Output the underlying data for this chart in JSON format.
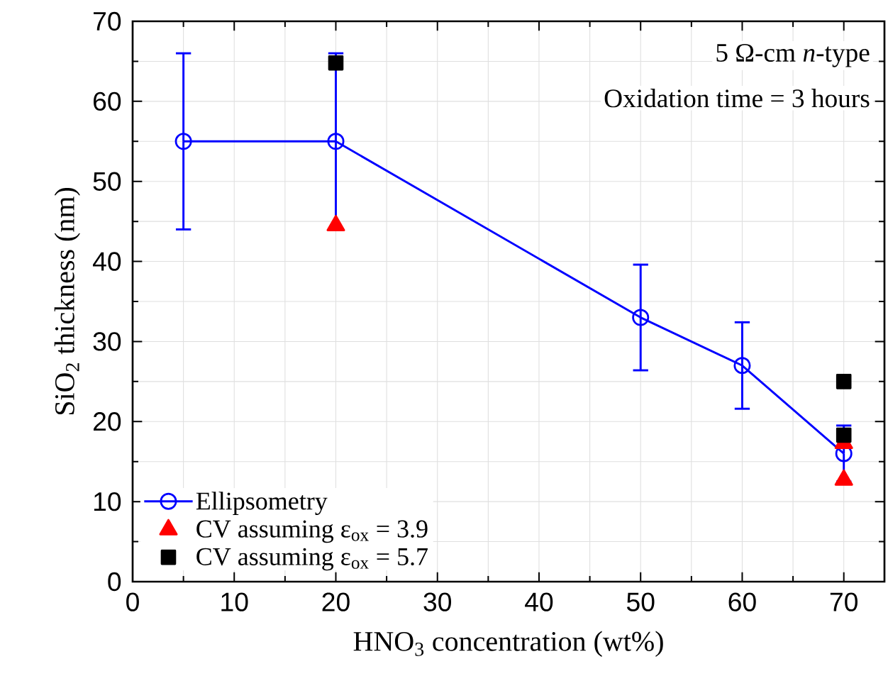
{
  "chart_data": {
    "type": "line",
    "xlabel": "HNO$_{3}$ concentration (wt%)",
    "ylabel": "SiO$_{2}$ thickness (nm)",
    "annotations": [
      "5 Ω-cm *n*-type",
      "Oxidation time = 3 hours"
    ],
    "xlim": [
      0,
      74
    ],
    "xticks": [
      0,
      10,
      20,
      30,
      40,
      50,
      60,
      70
    ],
    "ylim": [
      0,
      70
    ],
    "yticks": [
      0,
      10,
      20,
      30,
      40,
      50,
      60,
      70
    ],
    "grid": true,
    "legend": "bottom left",
    "series": [
      {
        "name": "Ellipsometry",
        "marker": "circle",
        "line_style": "solid",
        "color": "#0000ff",
        "x": [
          5,
          20,
          50,
          60,
          70
        ],
        "values": [
          55,
          55,
          33,
          27,
          16
        ],
        "errors": [
          11,
          11,
          6.6,
          5.4,
          3.5
        ]
      },
      {
        "name": "CV assuming ε$_{ox}$ = 3.9",
        "type": "scatter",
        "marker": "triangle",
        "color": "#ff0000",
        "x": [
          20,
          70,
          70
        ],
        "values": [
          44.5,
          17.3,
          12.7
        ]
      },
      {
        "name": "CV assuming ε$_{ox}$ = 5.7",
        "type": "scatter",
        "marker": "square",
        "color": "#000000",
        "x": [
          20,
          70,
          70
        ],
        "values": [
          64.8,
          25,
          18.3
        ]
      }
    ]
  }
}
